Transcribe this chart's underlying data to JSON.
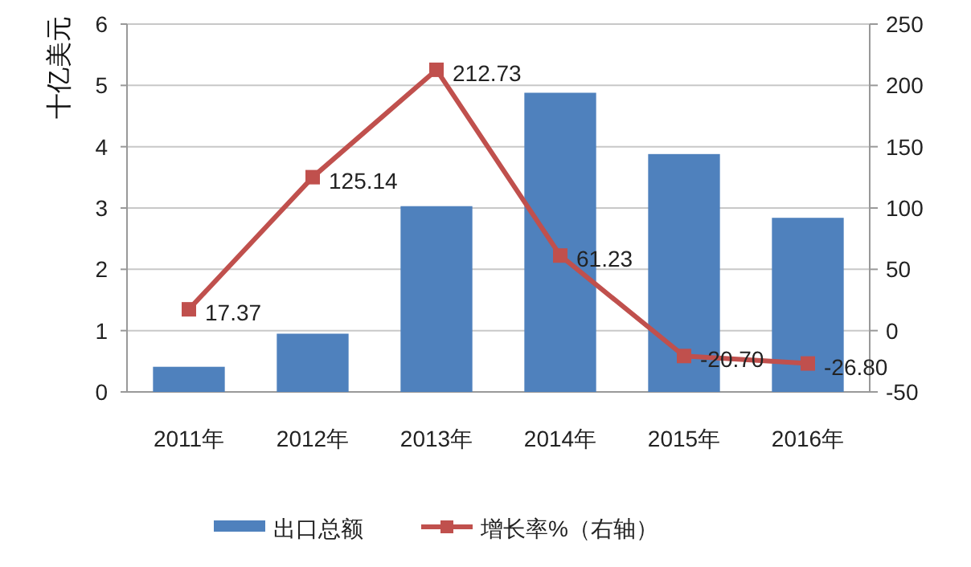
{
  "chart_data": {
    "type": "bar",
    "ylabel": "十亿美元",
    "categories": [
      "2011年",
      "2012年",
      "2013年",
      "2014年",
      "2015年",
      "2016年"
    ],
    "series": [
      {
        "name": "出口总额",
        "color": "#4f81bd",
        "values": [
          0.41,
          0.95,
          3.03,
          4.88,
          3.88,
          2.84
        ]
      },
      {
        "name": "增长率%（右轴）",
        "type": "line",
        "axis": "y2",
        "color": "#c0504d",
        "values": [
          17.37,
          125.14,
          212.73,
          61.23,
          -20.7,
          -26.8
        ],
        "value_labels": [
          "17.37",
          "125.14",
          "212.73",
          "61.23",
          "-20.70",
          "-26.80"
        ]
      }
    ],
    "ylim": [
      0,
      6
    ],
    "yticks": [
      0,
      1,
      2,
      3,
      4,
      5,
      6
    ],
    "y2lim": [
      -50,
      250
    ],
    "y2ticks": [
      -50,
      0,
      50,
      100,
      150,
      200,
      250
    ],
    "grid": "y",
    "legend": "bottom",
    "marker": "square"
  }
}
